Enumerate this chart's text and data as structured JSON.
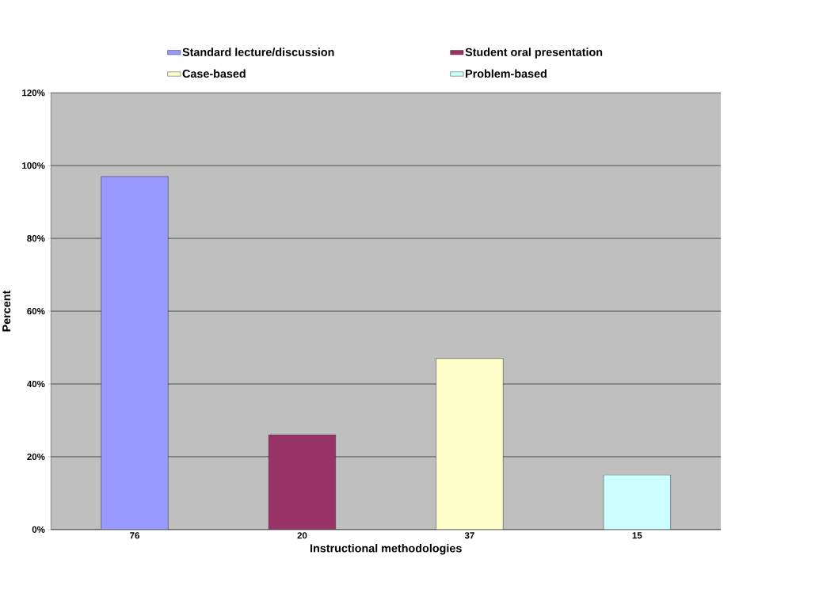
{
  "chart_data": {
    "type": "bar",
    "xlabel": "Instructional methodologies",
    "ylabel": "Percent",
    "categories": [
      "76",
      "20",
      "37",
      "15"
    ],
    "series": [
      {
        "name": "Standard lecture/discussion",
        "color": "#9999ff",
        "values": [
          97,
          null,
          null,
          null
        ]
      },
      {
        "name": "Student oral presentation",
        "color": "#993366",
        "values": [
          null,
          26,
          null,
          null
        ]
      },
      {
        "name": "Case-based",
        "color": "#ffffcc",
        "values": [
          null,
          null,
          47,
          null
        ]
      },
      {
        "name": "Problem-based",
        "color": "#ccffff",
        "values": [
          null,
          null,
          null,
          15
        ]
      }
    ],
    "ylim": [
      0,
      120
    ],
    "yticks": [
      {
        "value": 0,
        "label": "0%"
      },
      {
        "value": 20,
        "label": "20%"
      },
      {
        "value": 40,
        "label": "40%"
      },
      {
        "value": 60,
        "label": "60%"
      },
      {
        "value": 80,
        "label": "80%"
      },
      {
        "value": 100,
        "label": "100%"
      },
      {
        "value": 120,
        "label": "120%"
      }
    ],
    "grid": "y",
    "legend": "top"
  }
}
